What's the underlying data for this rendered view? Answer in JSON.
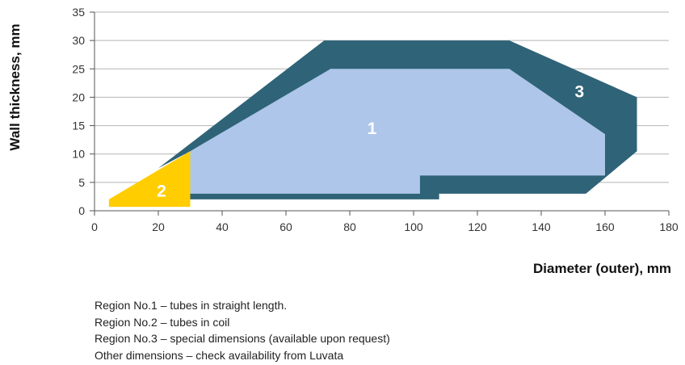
{
  "chart_data": {
    "type": "area",
    "title": "",
    "xlabel": "Diameter (outer), mm",
    "ylabel": "Wall thickness, mm",
    "xlim": [
      0,
      180
    ],
    "ylim": [
      0,
      35
    ],
    "xticks": [
      0,
      20,
      40,
      60,
      80,
      100,
      120,
      140,
      160,
      180
    ],
    "yticks": [
      0,
      5,
      10,
      15,
      20,
      25,
      30,
      35
    ],
    "grid": "horizontal",
    "regions": [
      {
        "label": "3",
        "color": "#2f6378",
        "polygon": [
          [
            20,
            7.5
          ],
          [
            72,
            30
          ],
          [
            130,
            30
          ],
          [
            170,
            20
          ],
          [
            170,
            10.5
          ],
          [
            154,
            3
          ],
          [
            108,
            3
          ],
          [
            108,
            2
          ],
          [
            30,
            2
          ],
          [
            30,
            10.5
          ]
        ]
      },
      {
        "label": "1",
        "color": "#aec6e9",
        "polygon": [
          [
            30,
            10.5
          ],
          [
            74,
            25
          ],
          [
            130,
            25
          ],
          [
            160,
            13.5
          ],
          [
            160,
            6.2
          ],
          [
            102,
            6.2
          ],
          [
            102,
            3
          ],
          [
            30,
            3
          ]
        ]
      },
      {
        "label": "2",
        "color": "#ffcd00",
        "polygon": [
          [
            4.5,
            0.7
          ],
          [
            4.5,
            2
          ],
          [
            30,
            10.5
          ],
          [
            30,
            0.7
          ]
        ]
      }
    ],
    "label_positions": {
      "1": [
        87,
        14.5
      ],
      "2": [
        21,
        3.5
      ],
      "3": [
        152,
        21
      ]
    },
    "legend_entries": [
      "Region No.1 – tubes in straight length.",
      "Region No.2 – tubes in coil",
      "Region No.3 – special dimensions (available upon request)",
      "Other dimensions – check availability from Luvata"
    ],
    "legend_placement": "bottom-left"
  }
}
